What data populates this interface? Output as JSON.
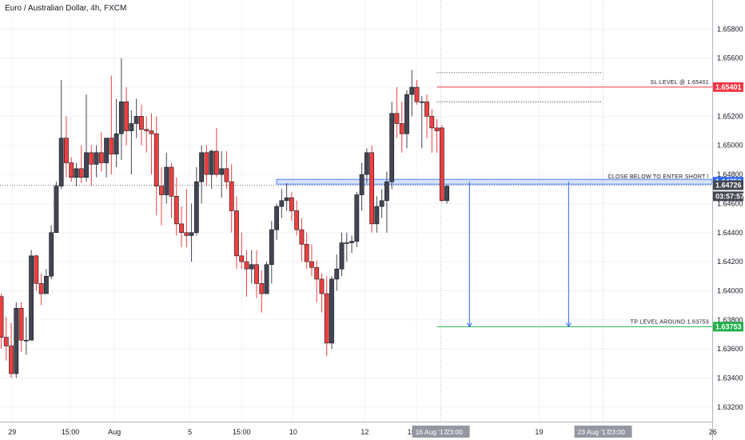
{
  "chart_data": {
    "type": "candlestick",
    "title": "Euro / Australian Dollar, 4h, FXCM",
    "ylim": [
      1.631,
      1.66
    ],
    "y_ticks": [
      1.658,
      1.656,
      1.654,
      1.652,
      1.65,
      1.648,
      1.646,
      1.644,
      1.642,
      1.64,
      1.638,
      1.636,
      1.634,
      1.632
    ],
    "y_tick_labels": [
      "1.65800",
      "1.65600",
      "1.65400",
      "1.65200",
      "1.65000",
      "1.64800",
      "1.64600",
      "1.64400",
      "1.64200",
      "1.64000",
      "1.63800",
      "1.63600",
      "1.63400",
      "1.63200"
    ],
    "x_ticks": [
      {
        "label": "29",
        "bar": 2.2
      },
      {
        "label": "15:00",
        "bar": 13.8
      },
      {
        "label": "Aug",
        "bar": 22.6
      },
      {
        "label": "5",
        "bar": 37.7
      },
      {
        "label": "15:00",
        "bar": 48.0
      },
      {
        "label": "10",
        "bar": 58.3
      },
      {
        "label": "12",
        "bar": 72.6
      },
      {
        "label": "15:00",
        "bar": 82.9
      },
      {
        "label": "19",
        "bar": 107.4
      },
      {
        "label": "15:00",
        "bar": 117.7
      },
      {
        "label": "26",
        "bar": 142.1
      }
    ],
    "candles": [
      [
        1.6396,
        1.6398,
        1.636,
        1.6368
      ],
      [
        1.6368,
        1.6382,
        1.6352,
        1.6362
      ],
      [
        1.6362,
        1.6378,
        1.634,
        1.6343
      ],
      [
        1.6343,
        1.6392,
        1.634,
        1.6388
      ],
      [
        1.6388,
        1.6392,
        1.6358,
        1.6366
      ],
      [
        1.6366,
        1.6382,
        1.6356,
        1.6366
      ],
      [
        1.6366,
        1.6428,
        1.6366,
        1.6424
      ],
      [
        1.6424,
        1.6425,
        1.64,
        1.6405
      ],
      [
        1.6405,
        1.6412,
        1.639,
        1.6398
      ],
      [
        1.6398,
        1.6415,
        1.6398,
        1.641
      ],
      [
        1.641,
        1.6445,
        1.6408,
        1.644
      ],
      [
        1.644,
        1.6475,
        1.644,
        1.6472
      ],
      [
        1.6472,
        1.6545,
        1.647,
        1.6505
      ],
      [
        1.6505,
        1.652,
        1.6478,
        1.6488
      ],
      [
        1.6488,
        1.6492,
        1.6475,
        1.6478
      ],
      [
        1.6478,
        1.6488,
        1.6472,
        1.6484
      ],
      [
        1.6484,
        1.65,
        1.6474,
        1.6478
      ],
      [
        1.6478,
        1.6535,
        1.6475,
        1.6495
      ],
      [
        1.6495,
        1.65,
        1.6472,
        1.6487
      ],
      [
        1.6487,
        1.65,
        1.6478,
        1.6495
      ],
      [
        1.6495,
        1.6509,
        1.6482,
        1.6488
      ],
      [
        1.6488,
        1.6504,
        1.6478,
        1.6505
      ],
      [
        1.6505,
        1.6548,
        1.648,
        1.6494
      ],
      [
        1.6494,
        1.6532,
        1.6485,
        1.6508
      ],
      [
        1.6508,
        1.656,
        1.649,
        1.653
      ],
      [
        1.653,
        1.654,
        1.65,
        1.651
      ],
      [
        1.651,
        1.6524,
        1.648,
        1.6515
      ],
      [
        1.6515,
        1.6532,
        1.6505,
        1.652
      ],
      [
        1.652,
        1.6528,
        1.65,
        1.6511
      ],
      [
        1.6511,
        1.652,
        1.6495,
        1.651
      ],
      [
        1.651,
        1.6522,
        1.648,
        1.6508
      ],
      [
        1.6508,
        1.652,
        1.6452,
        1.6472
      ],
      [
        1.6472,
        1.6485,
        1.6445,
        1.6466
      ],
      [
        1.6466,
        1.6495,
        1.646,
        1.6485
      ],
      [
        1.6485,
        1.6488,
        1.645,
        1.6465
      ],
      [
        1.6465,
        1.6478,
        1.6438,
        1.6446
      ],
      [
        1.6446,
        1.6458,
        1.643,
        1.644
      ],
      [
        1.644,
        1.647,
        1.643,
        1.6438
      ],
      [
        1.6438,
        1.646,
        1.642,
        1.644
      ],
      [
        1.644,
        1.6485,
        1.6438,
        1.6475
      ],
      [
        1.6475,
        1.65,
        1.646,
        1.6495
      ],
      [
        1.6495,
        1.65,
        1.6472,
        1.648
      ],
      [
        1.648,
        1.6497,
        1.647,
        1.6496
      ],
      [
        1.6496,
        1.6512,
        1.6478,
        1.648
      ],
      [
        1.648,
        1.6496,
        1.6464,
        1.6484
      ],
      [
        1.6484,
        1.6496,
        1.647,
        1.6475
      ],
      [
        1.6475,
        1.6487,
        1.644,
        1.6455
      ],
      [
        1.6455,
        1.6465,
        1.6415,
        1.6424
      ],
      [
        1.6424,
        1.644,
        1.6415,
        1.642
      ],
      [
        1.642,
        1.6428,
        1.6396,
        1.6415
      ],
      [
        1.6415,
        1.6428,
        1.6405,
        1.6418
      ],
      [
        1.6418,
        1.6428,
        1.6395,
        1.6405
      ],
      [
        1.6405,
        1.6414,
        1.6385,
        1.6398
      ],
      [
        1.6398,
        1.642,
        1.6398,
        1.6418
      ],
      [
        1.6418,
        1.6448,
        1.6405,
        1.6442
      ],
      [
        1.6442,
        1.646,
        1.6435,
        1.6458
      ],
      [
        1.6458,
        1.647,
        1.645,
        1.6462
      ],
      [
        1.6462,
        1.6474,
        1.6455,
        1.6464
      ],
      [
        1.6464,
        1.6468,
        1.6448,
        1.6455
      ],
      [
        1.6455,
        1.6462,
        1.6438,
        1.6442
      ],
      [
        1.6442,
        1.645,
        1.642,
        1.6432
      ],
      [
        1.6432,
        1.644,
        1.6415,
        1.642
      ],
      [
        1.642,
        1.6432,
        1.641,
        1.6416
      ],
      [
        1.6416,
        1.6421,
        1.6392,
        1.6408
      ],
      [
        1.6408,
        1.6412,
        1.6385,
        1.6398
      ],
      [
        1.6398,
        1.641,
        1.6355,
        1.6364
      ],
      [
        1.6364,
        1.641,
        1.636,
        1.6408
      ],
      [
        1.6408,
        1.6425,
        1.64,
        1.6415
      ],
      [
        1.6415,
        1.644,
        1.641,
        1.6433
      ],
      [
        1.6433,
        1.644,
        1.642,
        1.6433
      ],
      [
        1.6433,
        1.6438,
        1.6426,
        1.6434
      ],
      [
        1.6434,
        1.6468,
        1.643,
        1.6466
      ],
      [
        1.6466,
        1.6488,
        1.6455,
        1.648
      ],
      [
        1.648,
        1.6498,
        1.6474,
        1.6495
      ],
      [
        1.6495,
        1.65,
        1.644,
        1.6446
      ],
      [
        1.6446,
        1.6465,
        1.644,
        1.6458
      ],
      [
        1.6458,
        1.647,
        1.645,
        1.6462
      ],
      [
        1.6462,
        1.6482,
        1.644,
        1.6475
      ],
      [
        1.6475,
        1.653,
        1.647,
        1.6522
      ],
      [
        1.6522,
        1.654,
        1.6505,
        1.6515
      ],
      [
        1.6515,
        1.653,
        1.6495,
        1.6508
      ],
      [
        1.6508,
        1.6538,
        1.6498,
        1.6535
      ],
      [
        1.6535,
        1.6552,
        1.652,
        1.654
      ],
      [
        1.654,
        1.6545,
        1.6528,
        1.653
      ],
      [
        1.653,
        1.6534,
        1.6498,
        1.653
      ],
      [
        1.653,
        1.6535,
        1.6505,
        1.652
      ],
      [
        1.652,
        1.6525,
        1.6495,
        1.6512
      ],
      [
        1.6512,
        1.6518,
        1.6495,
        1.651
      ],
      [
        1.6512,
        1.6514,
        1.6461,
        1.6462
      ],
      [
        1.6462,
        1.6473,
        1.646,
        1.6472
      ]
    ],
    "bull_color": "#434651",
    "bear_color": "#ef3f3f",
    "current_price_line": 1.64726,
    "horizontal_lines": [
      {
        "y": 1.65401,
        "start_bar": 87,
        "color": "#f23645",
        "label": "SL LEVEL @ 1.65401"
      },
      {
        "y": 1.6475,
        "start_bar": 55,
        "color": "#2962ff",
        "label": "CLOSE BELOW TO ENTER SHORT !"
      },
      {
        "y": 1.63753,
        "start_bar": 87,
        "color": "#21b14b",
        "label": "TP LEVEL AROUND 1.63753"
      }
    ],
    "dotted_lines": [
      {
        "y": 1.655,
        "start_bar": 87,
        "end_bar": 120
      },
      {
        "y": 1.653,
        "start_bar": 87,
        "end_bar": 120
      }
    ],
    "vertical_markers": [
      {
        "bar": 87.8,
        "label": "16 Aug '17"
      },
      {
        "bar": 120.2,
        "label": "23 Aug '17"
      }
    ],
    "arrows": [
      {
        "bar": 93.5,
        "from": 1.6475,
        "to": 1.63753,
        "color": "#2962ff"
      },
      {
        "bar": 113.3,
        "from": 1.6475,
        "to": 1.63753,
        "color": "#2962ff"
      }
    ],
    "price_badges": [
      {
        "y": 1.65401,
        "label": "1.65401",
        "color": "#f23645"
      },
      {
        "y": 1.6475,
        "label": "1.64750",
        "color": "#2962ff"
      },
      {
        "y": 1.64726,
        "label": "1.64726",
        "color": "#434651"
      },
      {
        "y": 1.6465,
        "label": "03:57:57",
        "color": "#434651"
      },
      {
        "y": 1.63753,
        "label": "1.63753",
        "color": "#21b14b"
      }
    ],
    "x_badges": [
      {
        "bar": 87.8,
        "label": "16 Aug '17",
        "extra": "23:00"
      },
      {
        "bar": 120.2,
        "label": "23 Aug '17",
        "extra": "23:00"
      }
    ]
  }
}
